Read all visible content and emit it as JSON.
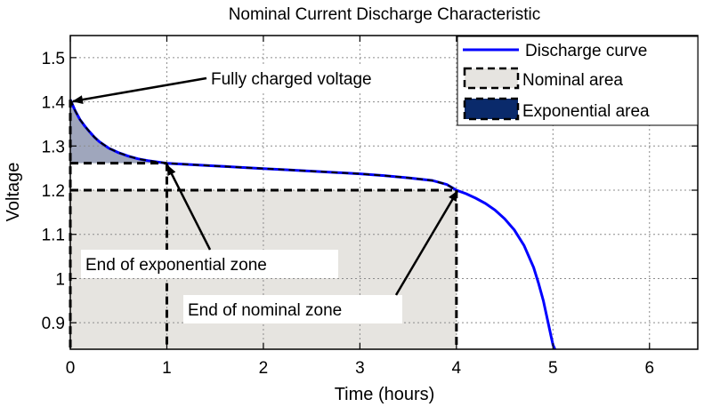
{
  "chart_data": {
    "type": "line",
    "title": "Nominal Current Discharge Characteristic",
    "xlabel": "Time (hours)",
    "ylabel": "Voltage",
    "xlim": [
      0,
      6.5
    ],
    "ylim": [
      0.84,
      1.55
    ],
    "xticks": [
      0,
      1,
      2,
      3,
      4,
      5,
      6
    ],
    "yticks": [
      0.9,
      1,
      1.1,
      1.2,
      1.3,
      1.4,
      1.5
    ],
    "grid": true,
    "legend_position": "top-right",
    "series": [
      {
        "name": "Discharge curve",
        "color": "#0000ff",
        "x": [
          0,
          0.05,
          0.1,
          0.15,
          0.2,
          0.25,
          0.3,
          0.4,
          0.5,
          0.6,
          0.7,
          0.8,
          0.9,
          1.0,
          1.25,
          1.5,
          1.75,
          2.0,
          2.25,
          2.5,
          2.75,
          3.0,
          3.25,
          3.5,
          3.75,
          3.9,
          4.0,
          4.1,
          4.2,
          4.3,
          4.4,
          4.5,
          4.6,
          4.7,
          4.8,
          4.85,
          4.9,
          4.95,
          4.98,
          5.0,
          5.02
        ],
        "y": [
          1.405,
          1.38,
          1.36,
          1.345,
          1.332,
          1.32,
          1.31,
          1.295,
          1.285,
          1.277,
          1.271,
          1.267,
          1.264,
          1.261,
          1.258,
          1.255,
          1.252,
          1.249,
          1.246,
          1.243,
          1.24,
          1.237,
          1.233,
          1.228,
          1.222,
          1.213,
          1.2,
          1.192,
          1.182,
          1.17,
          1.155,
          1.135,
          1.11,
          1.075,
          1.025,
          0.99,
          0.95,
          0.9,
          0.87,
          0.85,
          0.84
        ]
      }
    ],
    "areas": [
      {
        "name": "Nominal area",
        "fill": "#e6e4e0",
        "x": [
          0,
          4
        ],
        "y": [
          0.84,
          1.2
        ]
      },
      {
        "name": "Exponential area",
        "fill": "#0a2a6b"
      }
    ],
    "markers": {
      "full_charge": {
        "x": 0,
        "y": 1.405
      },
      "exp_end": {
        "x": 1,
        "y": 1.261
      },
      "nom_end": {
        "x": 4,
        "y": 1.2
      }
    },
    "annotations": [
      {
        "text": "Fully charged voltage"
      },
      {
        "text": "End of exponential zone"
      },
      {
        "text": "End of nominal zone"
      }
    ]
  }
}
